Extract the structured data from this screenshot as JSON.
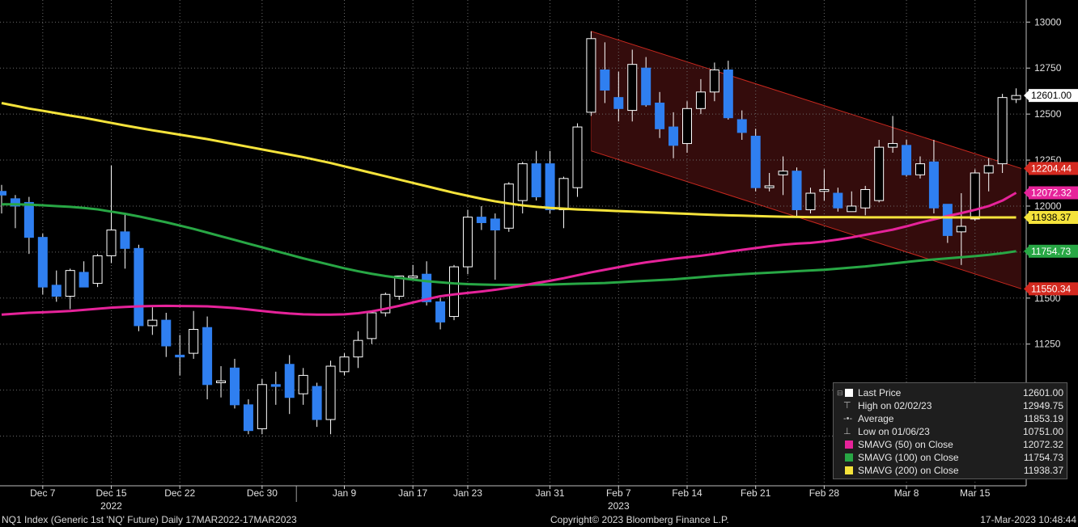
{
  "footer": {
    "left": "NQ1 Index (Generic 1st 'NQ' Future)  Daily 17MAR2022-17MAR2023",
    "center": "Copyright© 2023 Bloomberg Finance L.P.",
    "right": "17-Mar-2023 10:48:44"
  },
  "legend": {
    "rows": [
      {
        "label": "Last Price",
        "value": "12601.00",
        "color": "#ffffff",
        "glyph": "box"
      },
      {
        "label": "High on 02/02/23",
        "value": "12949.75",
        "color": "#bbbbbb",
        "glyph": "high"
      },
      {
        "label": "Average",
        "value": "11853.19",
        "color": "#bbbbbb",
        "glyph": "avg"
      },
      {
        "label": "Low on 01/06/23",
        "value": "10751.00",
        "color": "#bbbbbb",
        "glyph": "low"
      },
      {
        "label": "SMAVG (50)  on Close",
        "value": "12072.32",
        "color": "#e6239a"
      },
      {
        "label": "SMAVG (100)  on Close",
        "value": "11754.73",
        "color": "#28a745"
      },
      {
        "label": "SMAVG (200)  on Close",
        "value": "11938.37",
        "color": "#f5e33b"
      }
    ]
  },
  "chart_data": {
    "type": "candlestick",
    "y_ticks": [
      10750,
      11000,
      11250,
      11500,
      11750,
      12000,
      12250,
      12500,
      12750,
      13000
    ],
    "ylim": [
      10480,
      13120
    ],
    "x_ticks": [
      "Dec 7",
      "Dec 15",
      "Dec 22",
      "Dec 30",
      "Jan 9",
      "Jan 17",
      "Jan 23",
      "Jan 31",
      "Feb 7",
      "Feb 14",
      "Feb 21",
      "Feb 28",
      "Mar 8",
      "Mar 15"
    ],
    "year_labels": [
      "2022",
      "2023"
    ],
    "grid": true,
    "colors": {
      "up": "#ffffff",
      "down": "#2f7ff0",
      "sma50": "#e6239a",
      "sma100": "#28a745",
      "sma200": "#f5e33b",
      "channel_fill": "#3d0e0e",
      "channel_line": "#c8281e"
    },
    "candles": [
      {
        "o": 12080,
        "h": 12115,
        "l": 11960,
        "c": 12060
      },
      {
        "o": 12040,
        "h": 12060,
        "l": 11880,
        "c": 12000
      },
      {
        "o": 12020,
        "h": 12050,
        "l": 11740,
        "c": 11830
      },
      {
        "o": 11830,
        "h": 11850,
        "l": 11520,
        "c": 11560
      },
      {
        "o": 11570,
        "h": 11650,
        "l": 11480,
        "c": 11510
      },
      {
        "o": 11510,
        "h": 11660,
        "l": 11440,
        "c": 11650
      },
      {
        "o": 11640,
        "h": 11700,
        "l": 11560,
        "c": 11560
      },
      {
        "o": 11580,
        "h": 11740,
        "l": 11560,
        "c": 11730
      },
      {
        "o": 11730,
        "h": 12220,
        "l": 11690,
        "c": 11870
      },
      {
        "o": 11860,
        "h": 11960,
        "l": 11660,
        "c": 11770
      },
      {
        "o": 11770,
        "h": 11790,
        "l": 11320,
        "c": 11350
      },
      {
        "o": 11350,
        "h": 11450,
        "l": 11300,
        "c": 11380
      },
      {
        "o": 11380,
        "h": 11420,
        "l": 11180,
        "c": 11240
      },
      {
        "o": 11190,
        "h": 11300,
        "l": 11080,
        "c": 11180
      },
      {
        "o": 11200,
        "h": 11430,
        "l": 11170,
        "c": 11330
      },
      {
        "o": 11340,
        "h": 11400,
        "l": 10950,
        "c": 11030
      },
      {
        "o": 11040,
        "h": 11130,
        "l": 10960,
        "c": 11050
      },
      {
        "o": 11120,
        "h": 11170,
        "l": 10900,
        "c": 10920
      },
      {
        "o": 10920,
        "h": 10950,
        "l": 10760,
        "c": 10780
      },
      {
        "o": 10790,
        "h": 11060,
        "l": 10760,
        "c": 11030
      },
      {
        "o": 11030,
        "h": 11100,
        "l": 10920,
        "c": 11020
      },
      {
        "o": 11140,
        "h": 11190,
        "l": 10870,
        "c": 10960
      },
      {
        "o": 10980,
        "h": 11120,
        "l": 10920,
        "c": 11080
      },
      {
        "o": 11020,
        "h": 11040,
        "l": 10800,
        "c": 10840
      },
      {
        "o": 10840,
        "h": 11160,
        "l": 10760,
        "c": 11130
      },
      {
        "o": 11100,
        "h": 11200,
        "l": 11080,
        "c": 11180
      },
      {
        "o": 11180,
        "h": 11320,
        "l": 11120,
        "c": 11270
      },
      {
        "o": 11280,
        "h": 11430,
        "l": 11250,
        "c": 11420
      },
      {
        "o": 11420,
        "h": 11530,
        "l": 11400,
        "c": 11520
      },
      {
        "o": 11510,
        "h": 11620,
        "l": 11490,
        "c": 11620
      },
      {
        "o": 11610,
        "h": 11680,
        "l": 11600,
        "c": 11620
      },
      {
        "o": 11630,
        "h": 11700,
        "l": 11460,
        "c": 11480
      },
      {
        "o": 11480,
        "h": 11500,
        "l": 11330,
        "c": 11370
      },
      {
        "o": 11400,
        "h": 11680,
        "l": 11380,
        "c": 11670
      },
      {
        "o": 11670,
        "h": 11980,
        "l": 11630,
        "c": 11940
      },
      {
        "o": 11940,
        "h": 12000,
        "l": 11870,
        "c": 11910
      },
      {
        "o": 11930,
        "h": 11960,
        "l": 11600,
        "c": 11870
      },
      {
        "o": 11880,
        "h": 12130,
        "l": 11860,
        "c": 12120
      },
      {
        "o": 12030,
        "h": 12240,
        "l": 11960,
        "c": 12230
      },
      {
        "o": 12230,
        "h": 12300,
        "l": 12030,
        "c": 12050
      },
      {
        "o": 12230,
        "h": 12300,
        "l": 11960,
        "c": 11980
      },
      {
        "o": 11980,
        "h": 12160,
        "l": 11880,
        "c": 12150
      },
      {
        "o": 12100,
        "h": 12450,
        "l": 12050,
        "c": 12430
      },
      {
        "o": 12510,
        "h": 12950,
        "l": 12490,
        "c": 12910
      },
      {
        "o": 12740,
        "h": 12890,
        "l": 12560,
        "c": 12630
      },
      {
        "o": 12590,
        "h": 12730,
        "l": 12460,
        "c": 12530
      },
      {
        "o": 12520,
        "h": 12850,
        "l": 12460,
        "c": 12770
      },
      {
        "o": 12750,
        "h": 12810,
        "l": 12540,
        "c": 12550
      },
      {
        "o": 12560,
        "h": 12620,
        "l": 12370,
        "c": 12420
      },
      {
        "o": 12430,
        "h": 12510,
        "l": 12260,
        "c": 12330
      },
      {
        "o": 12340,
        "h": 12570,
        "l": 12290,
        "c": 12530
      },
      {
        "o": 12530,
        "h": 12690,
        "l": 12500,
        "c": 12620
      },
      {
        "o": 12620,
        "h": 12780,
        "l": 12570,
        "c": 12740
      },
      {
        "o": 12740,
        "h": 12790,
        "l": 12470,
        "c": 12480
      },
      {
        "o": 12470,
        "h": 12520,
        "l": 12360,
        "c": 12400
      },
      {
        "o": 12380,
        "h": 12420,
        "l": 12080,
        "c": 12100
      },
      {
        "o": 12100,
        "h": 12180,
        "l": 12080,
        "c": 12110
      },
      {
        "o": 12170,
        "h": 12270,
        "l": 12060,
        "c": 12190
      },
      {
        "o": 12190,
        "h": 12210,
        "l": 11940,
        "c": 11980
      },
      {
        "o": 11980,
        "h": 12100,
        "l": 11960,
        "c": 12070
      },
      {
        "o": 12080,
        "h": 12200,
        "l": 12030,
        "c": 12090
      },
      {
        "o": 12070,
        "h": 12100,
        "l": 11970,
        "c": 11990
      },
      {
        "o": 11970,
        "h": 12080,
        "l": 11970,
        "c": 12000
      },
      {
        "o": 11990,
        "h": 12110,
        "l": 11950,
        "c": 12090
      },
      {
        "o": 12030,
        "h": 12360,
        "l": 12020,
        "c": 12320
      },
      {
        "o": 12320,
        "h": 12490,
        "l": 12290,
        "c": 12340
      },
      {
        "o": 12330,
        "h": 12360,
        "l": 12160,
        "c": 12170
      },
      {
        "o": 12170,
        "h": 12270,
        "l": 12150,
        "c": 12230
      },
      {
        "o": 12240,
        "h": 12360,
        "l": 11960,
        "c": 11990
      },
      {
        "o": 12010,
        "h": 12010,
        "l": 11800,
        "c": 11840
      },
      {
        "o": 11860,
        "h": 12070,
        "l": 11680,
        "c": 11890
      },
      {
        "o": 11930,
        "h": 12200,
        "l": 11920,
        "c": 12180
      },
      {
        "o": 12180,
        "h": 12260,
        "l": 12080,
        "c": 12220
      },
      {
        "o": 12230,
        "h": 12610,
        "l": 12180,
        "c": 12590
      },
      {
        "o": 12580,
        "h": 12640,
        "l": 12560,
        "c": 12601
      }
    ],
    "sma50": [
      11410,
      11415,
      11420,
      11423,
      11426,
      11430,
      11436,
      11442,
      11448,
      11452,
      11455,
      11457,
      11458,
      11457,
      11456,
      11455,
      11451,
      11446,
      11438,
      11430,
      11422,
      11416,
      11412,
      11410,
      11410,
      11412,
      11418,
      11428,
      11442,
      11458,
      11476,
      11494,
      11510,
      11520,
      11528,
      11536,
      11545,
      11556,
      11568,
      11582,
      11594,
      11608,
      11624,
      11640,
      11654,
      11668,
      11682,
      11694,
      11704,
      11714,
      11722,
      11730,
      11740,
      11752,
      11762,
      11772,
      11782,
      11790,
      11796,
      11800,
      11808,
      11818,
      11830,
      11844,
      11858,
      11872,
      11890,
      11910,
      11928,
      11946,
      11962,
      11980,
      12000,
      12030,
      12072.32
    ],
    "sma100": [
      12010,
      12010,
      12008,
      12004,
      12000,
      11996,
      11990,
      11982,
      11970,
      11958,
      11944,
      11928,
      11912,
      11894,
      11876,
      11856,
      11836,
      11816,
      11796,
      11776,
      11756,
      11736,
      11716,
      11698,
      11680,
      11662,
      11646,
      11632,
      11620,
      11610,
      11600,
      11592,
      11586,
      11580,
      11576,
      11574,
      11572,
      11572,
      11572,
      11573,
      11574,
      11576,
      11578,
      11580,
      11582,
      11586,
      11590,
      11594,
      11598,
      11602,
      11608,
      11614,
      11620,
      11625,
      11630,
      11634,
      11638,
      11642,
      11646,
      11650,
      11654,
      11660,
      11666,
      11672,
      11680,
      11688,
      11696,
      11704,
      11710,
      11716,
      11722,
      11728,
      11735,
      11744,
      11754.73
    ],
    "sma200": [
      12560,
      12545,
      12530,
      12518,
      12505,
      12492,
      12480,
      12466,
      12452,
      12438,
      12425,
      12412,
      12400,
      12388,
      12376,
      12364,
      12350,
      12336,
      12322,
      12308,
      12294,
      12280,
      12266,
      12250,
      12234,
      12216,
      12198,
      12180,
      12162,
      12144,
      12126,
      12108,
      12090,
      12072,
      12056,
      12040,
      12026,
      12014,
      12004,
      11996,
      11990,
      11986,
      11982,
      11979,
      11976,
      11973,
      11970,
      11967,
      11964,
      11961,
      11958,
      11955,
      11952,
      11950,
      11948,
      11946,
      11944,
      11942,
      11941,
      11940,
      11940,
      11940,
      11940,
      11939,
      11939,
      11939,
      11939,
      11939,
      11939,
      11938.5,
      11938.5,
      11938.4,
      11938.4,
      11938.4,
      11938.37
    ],
    "channel": {
      "upper_start": 12950,
      "upper_end": 12204.44,
      "lower_start": 12300,
      "lower_end": 11550.34
    },
    "right_labels": [
      {
        "text": "12601.00",
        "value": 12601,
        "bg": "#ffffff",
        "fg": "#000000"
      },
      {
        "text": "12204.44",
        "value": 12204.44,
        "bg": "#d42a20",
        "fg": "#ffffff"
      },
      {
        "text": "12072.32",
        "value": 12072.32,
        "bg": "#e6239a",
        "fg": "#ffffff"
      },
      {
        "text": "11938.37",
        "value": 11938.37,
        "bg": "#f5e33b",
        "fg": "#000000"
      },
      {
        "text": "11754.73",
        "value": 11754.73,
        "bg": "#28a745",
        "fg": "#ffffff"
      },
      {
        "text": "11550.34",
        "value": 11550.34,
        "bg": "#d42a20",
        "fg": "#ffffff"
      }
    ]
  }
}
